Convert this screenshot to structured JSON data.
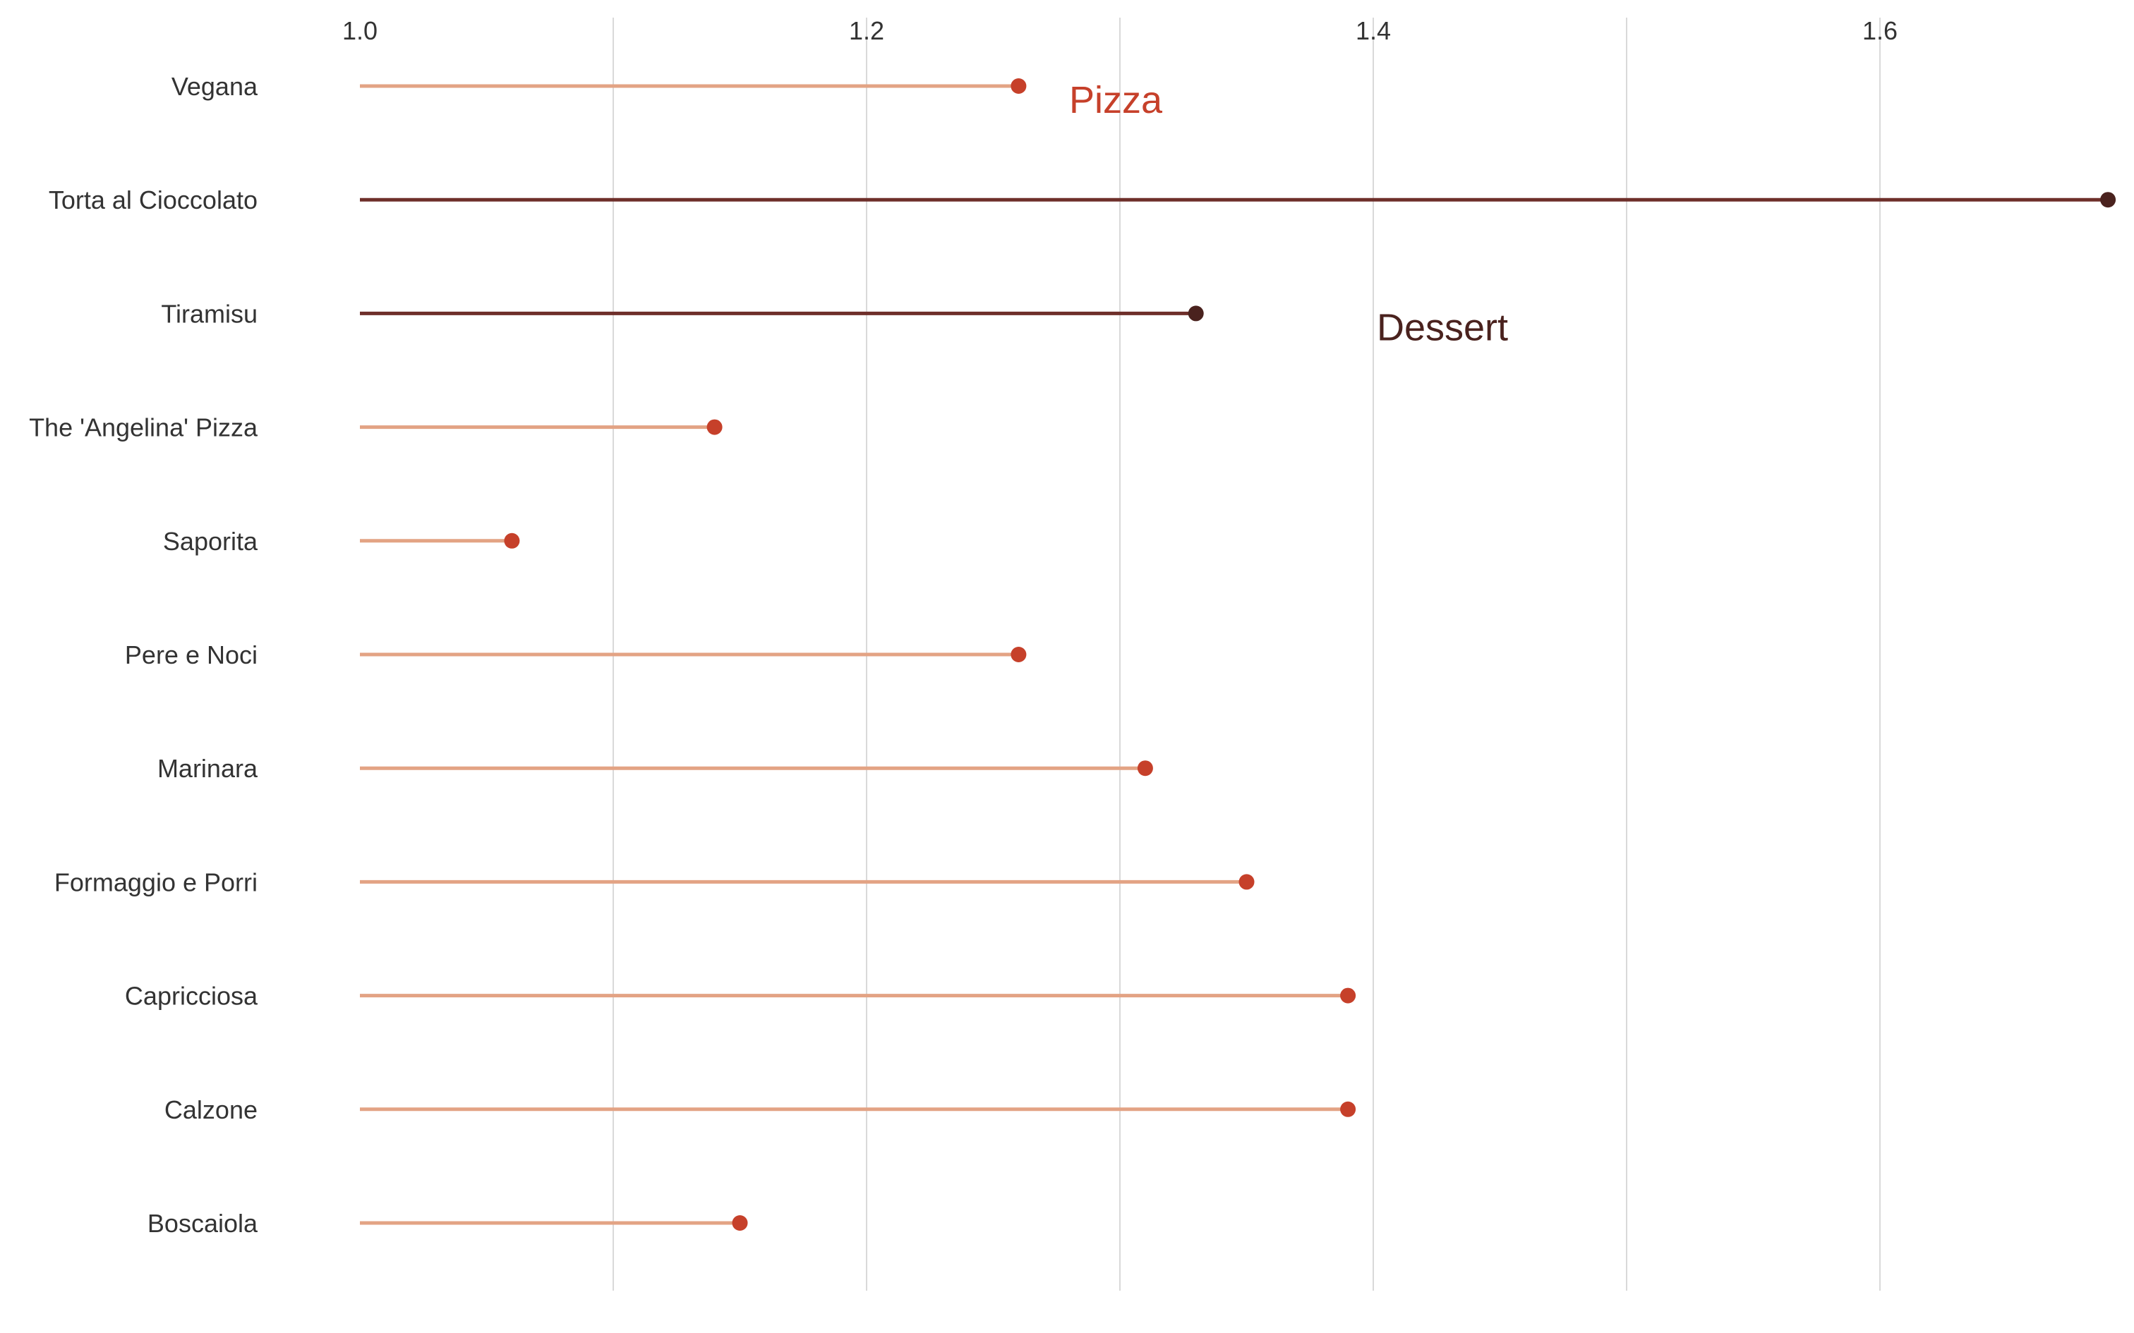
{
  "chart_data": {
    "type": "lollipop",
    "orientation": "horizontal",
    "baseline": 1.0,
    "xlim": [
      1.0,
      1.7
    ],
    "x_ticks": [
      "1.0",
      "1.2",
      "1.4",
      "1.6"
    ],
    "x_tick_values": [
      1.0,
      1.2,
      1.4,
      1.6
    ],
    "grid_values": [
      1.1,
      1.2,
      1.3,
      1.4,
      1.5,
      1.6
    ],
    "grid": true,
    "xaxis_position": "top",
    "colors": {
      "pizza_stem": "#e3a384",
      "pizza_dot": "#c6402a",
      "dessert_stem": "#6e2f2a",
      "dessert_dot": "#4a221e",
      "grid": "#d9d9d9",
      "text": "#333333"
    },
    "rows": [
      {
        "label": "Vegana",
        "value": 1.26,
        "group": "pizza"
      },
      {
        "label": "Torta al Cioccolato",
        "value": 1.69,
        "group": "dessert"
      },
      {
        "label": "Tiramisu",
        "value": 1.33,
        "group": "dessert"
      },
      {
        "label": "The 'Angelina' Pizza",
        "value": 1.14,
        "group": "pizza"
      },
      {
        "label": "Saporita",
        "value": 1.06,
        "group": "pizza"
      },
      {
        "label": "Pere e Noci",
        "value": 1.26,
        "group": "pizza"
      },
      {
        "label": "Marinara",
        "value": 1.31,
        "group": "pizza"
      },
      {
        "label": "Formaggio e Porri",
        "value": 1.35,
        "group": "pizza"
      },
      {
        "label": "Capricciosa",
        "value": 1.39,
        "group": "pizza"
      },
      {
        "label": "Calzone",
        "value": 1.39,
        "group": "pizza"
      },
      {
        "label": "Boscaiola",
        "value": 1.15,
        "group": "pizza"
      }
    ],
    "annotations": [
      {
        "text": "Pizza",
        "group": "pizza",
        "x": 1.3,
        "row": 0
      },
      {
        "text": "Dessert",
        "group": "dessert",
        "x": 1.4,
        "row": 2
      }
    ]
  }
}
